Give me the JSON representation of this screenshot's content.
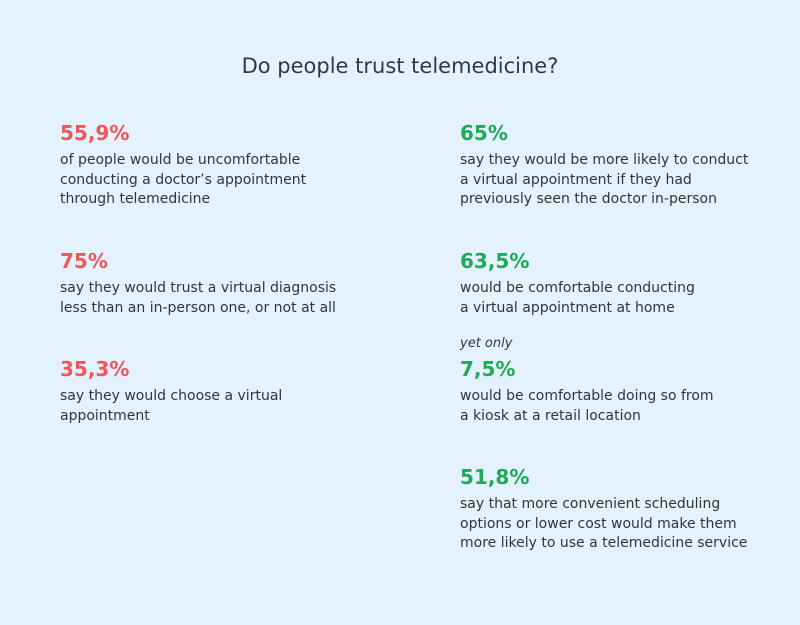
{
  "title": "Do people trust telemedicine?",
  "colors": {
    "background": "#e3f2fc",
    "negative": "#f0565c",
    "positive": "#20a85b",
    "text": "#30353b"
  },
  "left_stats": [
    {
      "value": "55,9%",
      "text": "of people would be uncomfortable\nconducting a doctor’s appointment\nthrough telemedicine"
    },
    {
      "value": "75%",
      "text": "say they would trust a virtual diagnosis\nless than an in-person one, or not at all"
    },
    {
      "value": "35,3%",
      "text": "say they would choose a virtual appointment"
    }
  ],
  "right_stats": [
    {
      "value": "65%",
      "text": "say they would be more likely to conduct\na virtual appointment if they had\npreviously seen the doctor in-person"
    },
    {
      "value": "63,5%",
      "text": "would be comfortable conducting\na virtual appointment at home"
    },
    {
      "prefix": "yet only",
      "value": "7,5%",
      "text": "would be comfortable doing so from\na kiosk at a retail location"
    },
    {
      "value": "51,8%",
      "text": "say that more convenient scheduling\noptions or lower cost would make them\nmore likely to use a telemedicine service"
    }
  ]
}
